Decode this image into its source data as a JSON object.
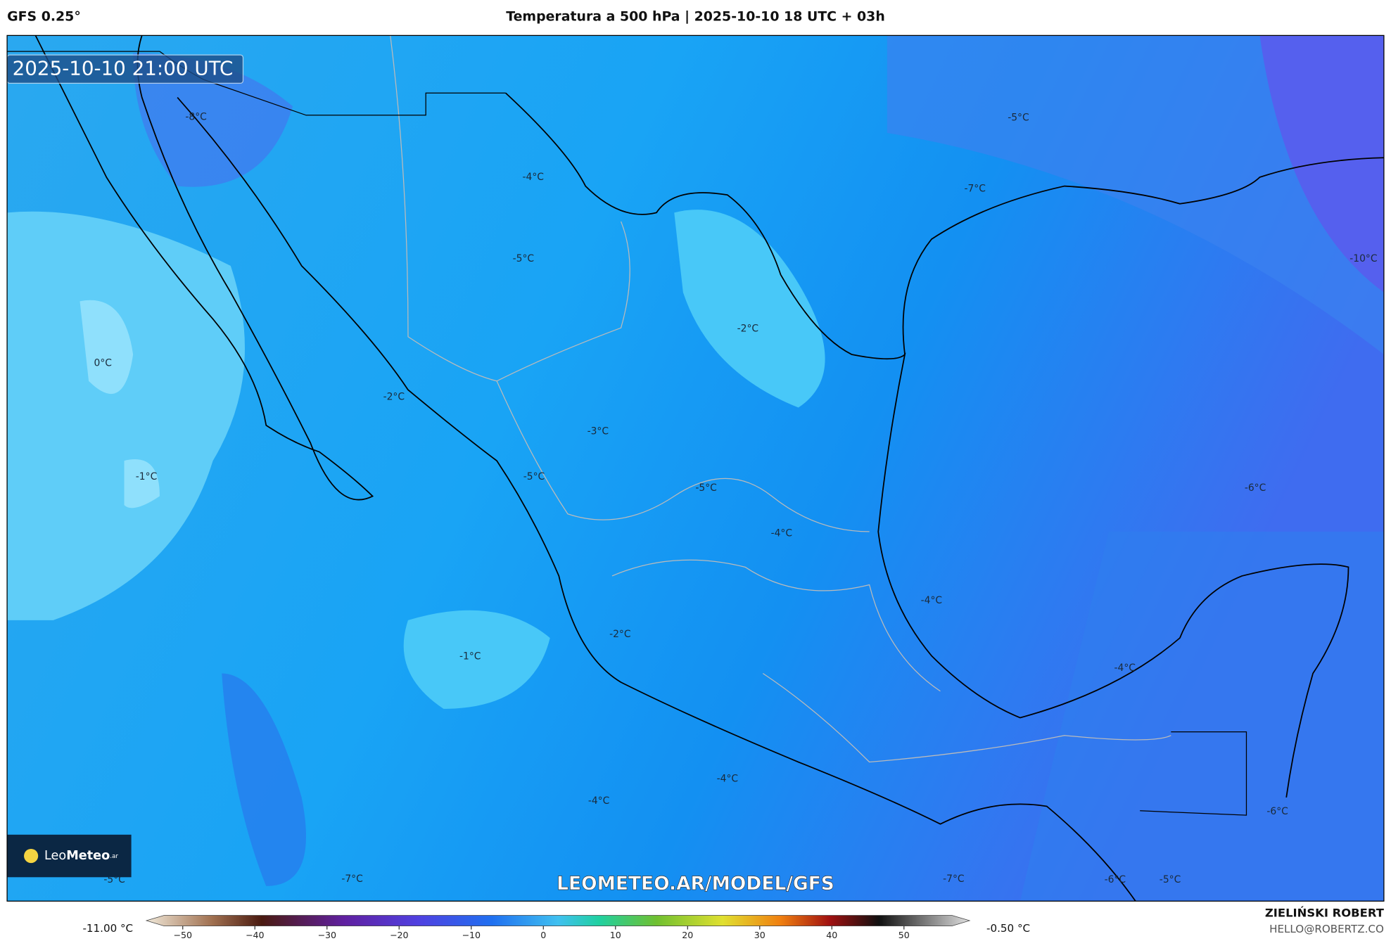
{
  "header": {
    "model": "GFS 0.25°",
    "title": "Temperatura a 500 hPa | 2025-10-10 18 UTC + 03h"
  },
  "map": {
    "timestamp": "2025-10-10 21:00 UTC",
    "watermark": "LEOMETEO.AR/MODEL/GFS",
    "logo": {
      "prefix": "Leo",
      "suffix": "Meteo",
      "tld": ".ar"
    },
    "contour_labels": [
      "-8°C",
      "-4°C",
      "-5°C",
      "-7°C",
      "-5°C",
      "-10°C",
      "-2°C",
      "0°C",
      "-2°C",
      "-3°C",
      "-1°C",
      "-5°C",
      "-5°C",
      "-6°C",
      "-4°C",
      "-4°C",
      "-2°C",
      "-1°C",
      "-4°C",
      "-4°C",
      "-4°C",
      "-6°C",
      "-5°C",
      "-7°C",
      "-7°C",
      "-6°C",
      "-5°C"
    ]
  },
  "colorbar": {
    "min_label": "-11.00 °C",
    "max_label": "-0.50 °C",
    "ticks": [
      {
        "value": -50,
        "label": "−50"
      },
      {
        "value": -40,
        "label": "−40"
      },
      {
        "value": -30,
        "label": "−30"
      },
      {
        "value": -20,
        "label": "−20"
      },
      {
        "value": -10,
        "label": "−10"
      },
      0,
      10,
      20,
      30,
      40,
      50
    ]
  },
  "footer": {
    "author": "ZIELIŃSKI ROBERT",
    "email": "HELLO@ROBERTZ.CO"
  }
}
